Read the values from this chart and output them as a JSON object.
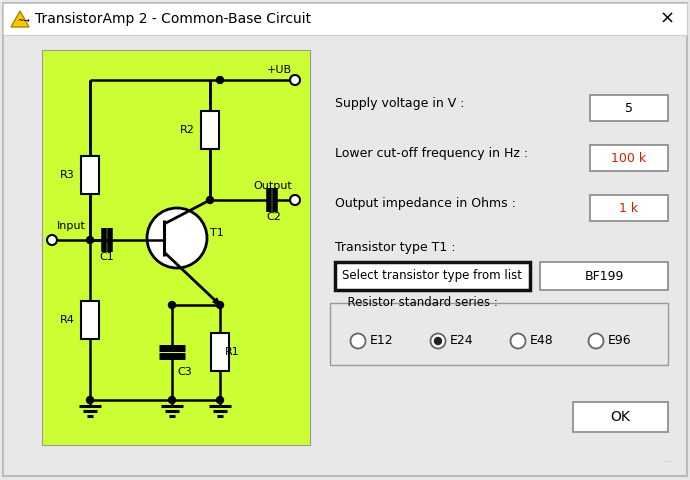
{
  "title": "TransistorAmp 2 - Common-Base Circuit",
  "bg_color": "#e8e8e8",
  "circuit_bg": "#ccff33",
  "title_bar_color": "#f0f0f0",
  "labels": {
    "supply_voltage": "Supply voltage in V :",
    "supply_value": "5",
    "lower_cutoff": "Lower cut-off frequency in Hz :",
    "lower_cutoff_value": "100 k",
    "output_impedance": "Output impedance in Ohms :",
    "output_impedance_value": "1 k",
    "transistor_type": "Transistor type T1 :",
    "select_button": "Select transistor type from list",
    "transistor_value": "BF199",
    "resistor_series": "Resistor standard series :",
    "e12": "E12",
    "e24": "E24",
    "e48": "E48",
    "e96": "E96",
    "ok": "OK",
    "input": "Input",
    "output": "Output",
    "ub": "+UB",
    "r1": "R1",
    "r2": "R2",
    "r3": "R3",
    "r4": "R4",
    "c1": "C1",
    "c2": "C2",
    "c3": "C3",
    "t1": "T1"
  },
  "red_color": "#cc2200",
  "selected_radio": "E24",
  "window_border": "#aaaaaa",
  "ctrl_border": "#888888",
  "select_btn_border": "#111111",
  "radio_options": [
    "E12",
    "E24",
    "E48",
    "E96"
  ]
}
